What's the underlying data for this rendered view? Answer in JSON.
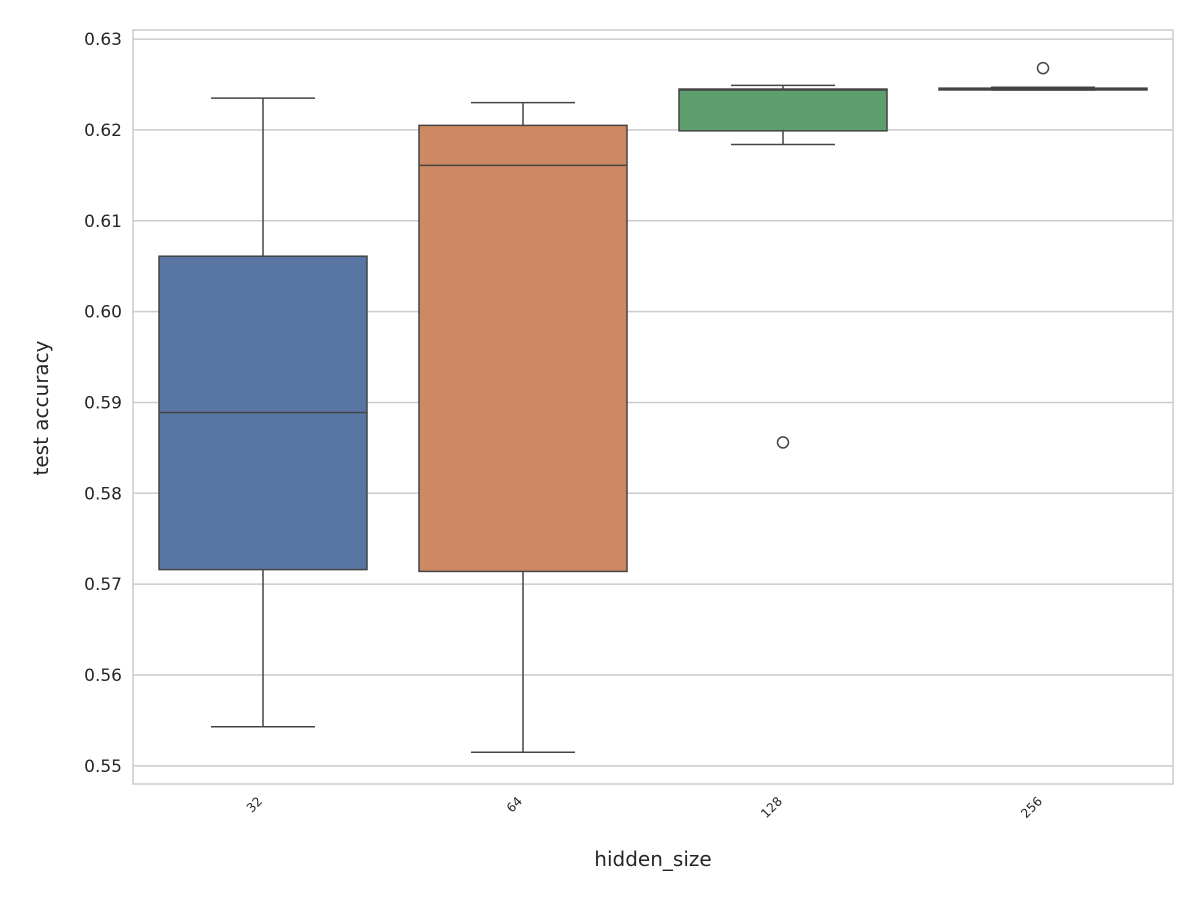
{
  "chart_data": {
    "type": "box",
    "xlabel": "hidden_size",
    "ylabel": "test accuracy",
    "categories": [
      "32",
      "64",
      "128",
      "256"
    ],
    "ylim": [
      0.548,
      0.631
    ],
    "yticks": [
      "0.55",
      "0.56",
      "0.57",
      "0.58",
      "0.59",
      "0.60",
      "0.61",
      "0.62",
      "0.63"
    ],
    "grid": true,
    "boxes": [
      {
        "category": "32",
        "whisker_low": 0.5543,
        "q1": 0.5716,
        "median": 0.5889,
        "q3": 0.6061,
        "whisker_high": 0.6235,
        "outliers": [],
        "color": "#5875a4"
      },
      {
        "category": "64",
        "whisker_low": 0.5515,
        "q1": 0.5714,
        "median": 0.6161,
        "q3": 0.6205,
        "whisker_high": 0.623,
        "outliers": [],
        "color": "#cc8963"
      },
      {
        "category": "128",
        "whisker_low": 0.6184,
        "q1": 0.6199,
        "median": 0.6244,
        "q3": 0.6245,
        "whisker_high": 0.6249,
        "outliers": [
          0.5856
        ],
        "color": "#5f9e6e"
      },
      {
        "category": "256",
        "whisker_low": 0.6244,
        "q1": 0.6244,
        "median": 0.6245,
        "q3": 0.6246,
        "whisker_high": 0.6247,
        "outliers": [
          0.6268
        ],
        "color": "#5875a4"
      }
    ]
  }
}
